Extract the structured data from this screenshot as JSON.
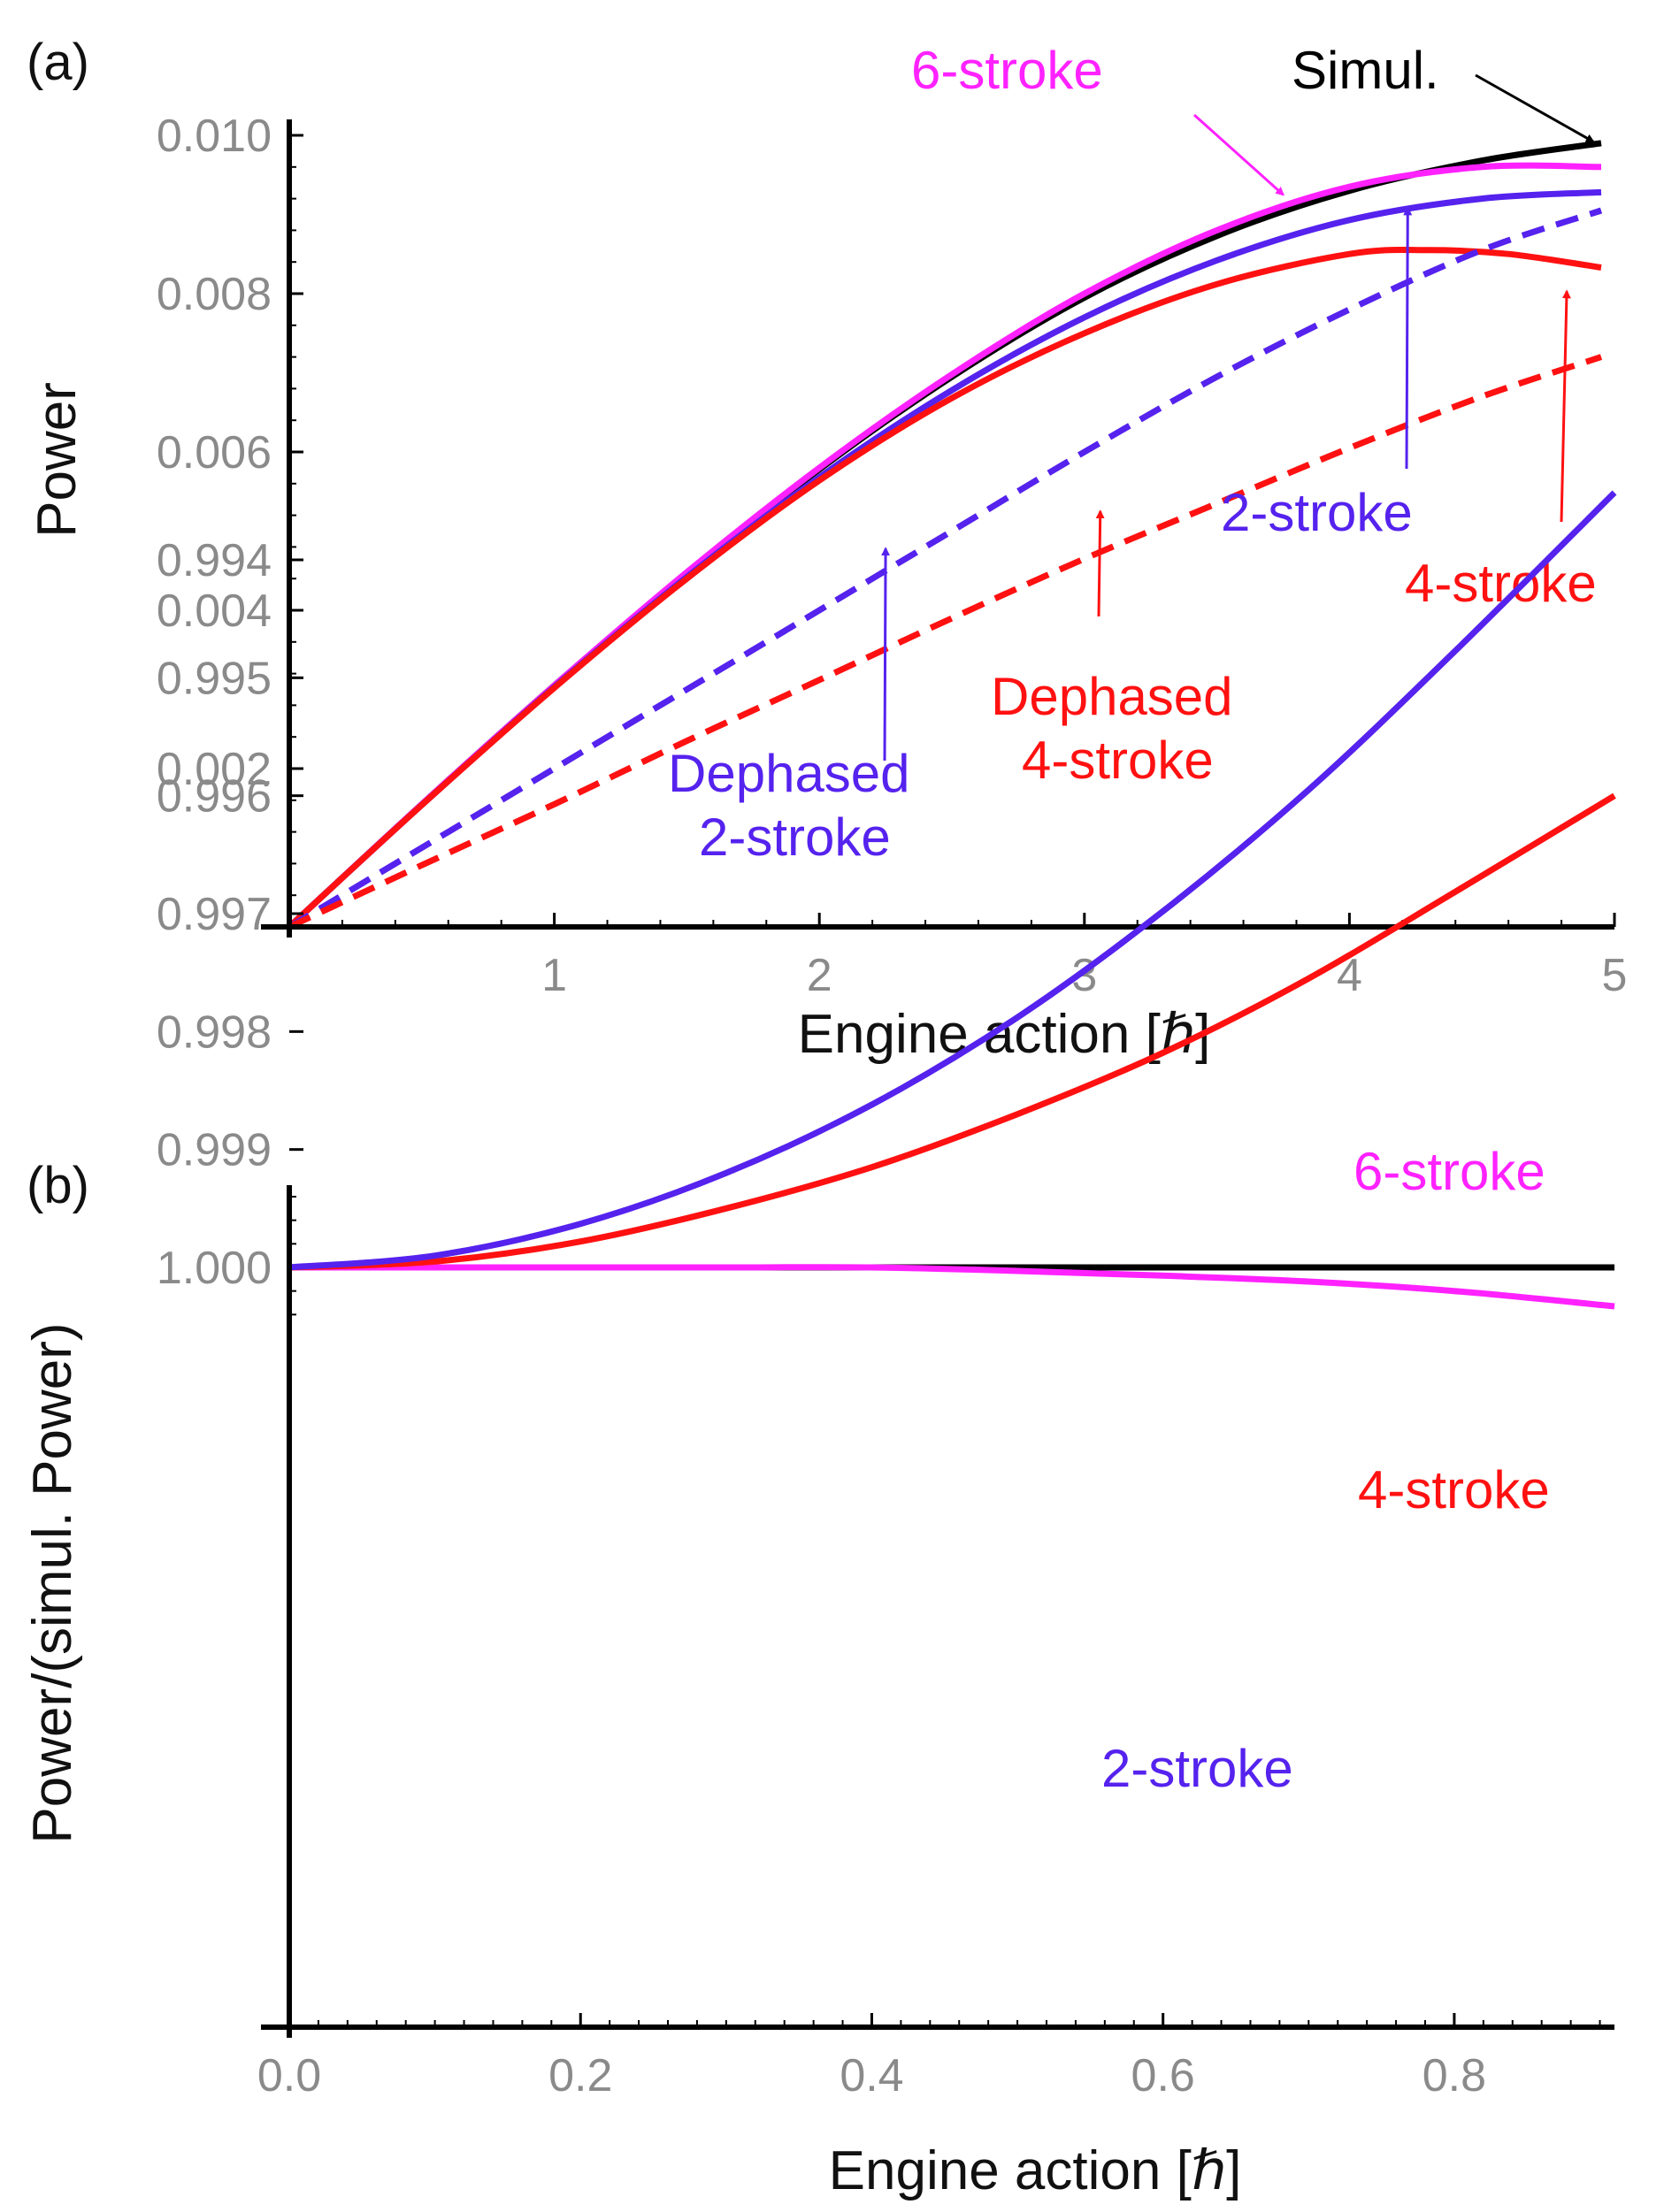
{
  "chart_data": [
    {
      "panel_label": "(a)",
      "type": "line",
      "xlabel": "Engine action [ℏ]",
      "ylabel": "Power",
      "xlim": [
        0,
        5
      ],
      "ylim": [
        0,
        0.0105
      ],
      "xticks": [
        1,
        2,
        3,
        4,
        5
      ],
      "xtick_labels": [
        "1",
        "2",
        "3",
        "4",
        "5"
      ],
      "yticks": [
        0.002,
        0.004,
        0.006,
        0.008,
        0.01
      ],
      "ytick_labels": [
        "0.002",
        "0.004",
        "0.006",
        "0.008",
        "0.010"
      ],
      "grid": false,
      "series": [
        {
          "key": "simul",
          "color": "#000000",
          "dash": "solid",
          "x": [
            0,
            0.5,
            1,
            1.5,
            2,
            2.5,
            3,
            3.5,
            4,
            4.5,
            4.95
          ],
          "y": [
            0,
            0.00155,
            0.00305,
            0.00447,
            0.00578,
            0.00695,
            0.00795,
            0.00873,
            0.0093,
            0.00968,
            0.0099
          ]
        },
        {
          "key": "six",
          "color": "#ff22ff",
          "dash": "solid",
          "x": [
            0,
            0.5,
            1,
            1.5,
            2,
            2.5,
            3,
            3.5,
            4,
            4.5,
            4.95
          ],
          "y": [
            0,
            0.00155,
            0.00305,
            0.00448,
            0.0058,
            0.00698,
            0.008,
            0.0088,
            0.00935,
            0.0096,
            0.0096
          ]
        },
        {
          "key": "two",
          "color": "#5522ee",
          "dash": "solid",
          "x": [
            0,
            0.5,
            1,
            1.5,
            2,
            2.5,
            3,
            3.5,
            4,
            4.5,
            4.95
          ],
          "y": [
            0,
            0.00154,
            0.00303,
            0.00442,
            0.00568,
            0.00678,
            0.0077,
            0.00842,
            0.00893,
            0.0092,
            0.00928
          ]
        },
        {
          "key": "four",
          "color": "#ff1111",
          "dash": "solid",
          "x": [
            0,
            0.5,
            1,
            1.5,
            2,
            2.5,
            3,
            3.5,
            4,
            4.3,
            4.6,
            4.95
          ],
          "y": [
            0,
            0.00154,
            0.00302,
            0.0044,
            0.00564,
            0.00668,
            0.0075,
            0.00812,
            0.0085,
            0.00855,
            0.0085,
            0.00833
          ]
        },
        {
          "key": "deph_two",
          "color": "#5522ee",
          "dash": "dashed",
          "x": [
            0,
            0.5,
            1,
            1.5,
            2,
            2.5,
            3,
            3.5,
            4,
            4.5,
            4.95
          ],
          "y": [
            0,
            0.001,
            0.002,
            0.003,
            0.004,
            0.005,
            0.006,
            0.00695,
            0.0078,
            0.00855,
            0.00905
          ]
        },
        {
          "key": "deph_four",
          "color": "#ff1111",
          "dash": "dashed",
          "x": [
            0,
            0.5,
            1,
            1.5,
            2,
            2.5,
            3,
            3.5,
            4,
            4.5,
            4.95
          ],
          "y": [
            0,
            0.00078,
            0.00155,
            0.00235,
            0.00312,
            0.0039,
            0.00465,
            0.00535,
            0.00605,
            0.0067,
            0.0072
          ]
        }
      ],
      "annotations": [
        {
          "key": "simul",
          "lines": [
            "Simul."
          ],
          "color": "#000000",
          "arrow_to": [
            4.92,
            0.00992
          ]
        },
        {
          "key": "six",
          "lines": [
            "6-stroke"
          ],
          "color": "#ff22ff",
          "arrow_to": [
            3.75,
            0.00925
          ]
        },
        {
          "key": "two",
          "lines": [
            "2-stroke"
          ],
          "color": "#5522ee",
          "arrow_to": [
            4.22,
            0.00908
          ]
        },
        {
          "key": "four",
          "lines": [
            "4-stroke"
          ],
          "color": "#ff1111",
          "arrow_to": [
            4.82,
            0.00803
          ]
        },
        {
          "key": "deph_two",
          "lines": [
            "Dephased",
            "2-stroke"
          ],
          "color": "#5522ee",
          "arrow_to": [
            2.25,
            0.00478
          ]
        },
        {
          "key": "deph_four",
          "lines": [
            "Dephased",
            "4-stroke"
          ],
          "color": "#ff1111",
          "arrow_to": [
            3.06,
            0.00525
          ]
        }
      ]
    },
    {
      "panel_label": "(b)",
      "type": "line",
      "xlabel": "Engine action [ℏ]",
      "ylabel": "Power/(simul. Power)",
      "xlim": [
        0,
        0.92
      ],
      "ylim": [
        0.9932,
        1.0005
      ],
      "xticks": [
        0.0,
        0.2,
        0.4,
        0.6,
        0.8
      ],
      "xtick_labels": [
        "0.0",
        "0.2",
        "0.4",
        "0.6",
        "0.8"
      ],
      "yticks": [
        0.994,
        0.995,
        0.996,
        0.997,
        0.998,
        0.999,
        1.0
      ],
      "ytick_labels": [
        "0.994",
        "0.995",
        "0.996",
        "0.997",
        "0.998",
        "0.999",
        "1.000"
      ],
      "grid": false,
      "series": [
        {
          "key": "simul",
          "color": "#000000",
          "dash": "solid",
          "x": [
            0,
            0.91
          ],
          "y": [
            1.0,
            1.0
          ]
        },
        {
          "key": "six",
          "color": "#ff22ff",
          "dash": "solid",
          "x": [
            0,
            0.1,
            0.2,
            0.3,
            0.4,
            0.5,
            0.6,
            0.7,
            0.8,
            0.91
          ],
          "y": [
            1.0,
            1.0,
            1.0,
            1.0,
            1.0,
            1.00003,
            1.00007,
            1.00012,
            1.0002,
            1.00033
          ]
        },
        {
          "key": "four",
          "color": "#ff1111",
          "dash": "solid",
          "x": [
            0,
            0.1,
            0.2,
            0.3,
            0.4,
            0.5,
            0.6,
            0.7,
            0.8,
            0.91
          ],
          "y": [
            1.0,
            0.99995,
            0.99978,
            0.9995,
            0.99915,
            0.9987,
            0.99818,
            0.99755,
            0.99682,
            0.996
          ]
        },
        {
          "key": "two",
          "color": "#5522ee",
          "dash": "solid",
          "x": [
            0,
            0.1,
            0.2,
            0.3,
            0.4,
            0.5,
            0.6,
            0.7,
            0.8,
            0.91
          ],
          "y": [
            1.0,
            0.9999,
            0.99963,
            0.9992,
            0.99862,
            0.99788,
            0.99698,
            0.99595,
            0.99478,
            0.99343
          ]
        }
      ],
      "annotations": [
        {
          "key": "six",
          "lines": [
            "6-stroke"
          ],
          "color": "#ff22ff"
        },
        {
          "key": "four",
          "lines": [
            "4-stroke"
          ],
          "color": "#ff1111"
        },
        {
          "key": "two",
          "lines": [
            "2-stroke"
          ],
          "color": "#5522ee"
        }
      ]
    }
  ]
}
